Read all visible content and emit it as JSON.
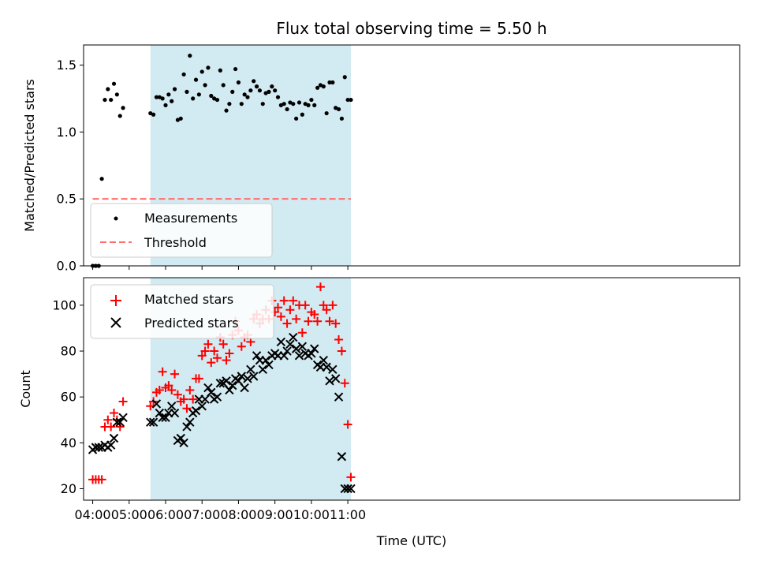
{
  "title": "Flux total observing time = 5.50 h",
  "colors": {
    "shade": "#add8e6",
    "measurement": "#000000",
    "threshold": "#ff6e6e",
    "matched": "#ff0000",
    "predicted": "#000000"
  },
  "chart_data": [
    {
      "type": "scatter",
      "ylabel": "Matched/Predicted stars",
      "xlabel": "",
      "xlim": [
        225,
        1305
      ],
      "ylim": [
        0,
        1.65
      ],
      "yticks": [
        0.0,
        0.5,
        1.0,
        1.5
      ],
      "ytick_labels": [
        "0.0",
        "0.5",
        "1.0",
        "1.5"
      ],
      "xticks": [
        240,
        300,
        360,
        420,
        480,
        540,
        600,
        660
      ],
      "shaded_span": [
        335,
        665
      ],
      "legend": {
        "position": "lower-left",
        "entries": [
          "Measurements",
          "Threshold"
        ]
      },
      "threshold": {
        "name": "Threshold",
        "x": [
          240,
          665
        ],
        "y": 0.5
      },
      "series": [
        {
          "name": "Measurements",
          "marker": "dot",
          "x": [
            240,
            245,
            250,
            255,
            260,
            265,
            270,
            275,
            280,
            285,
            290,
            335,
            340,
            345,
            350,
            355,
            360,
            365,
            370,
            375,
            380,
            385,
            390,
            395,
            400,
            405,
            410,
            415,
            420,
            425,
            430,
            435,
            440,
            445,
            450,
            455,
            460,
            465,
            470,
            475,
            480,
            485,
            490,
            495,
            500,
            505,
            510,
            515,
            520,
            525,
            530,
            535,
            540,
            545,
            550,
            555,
            560,
            565,
            570,
            575,
            580,
            585,
            590,
            595,
            600,
            605,
            610,
            615,
            620,
            625,
            630,
            635,
            640,
            645,
            650,
            655,
            660,
            665
          ],
          "y": [
            0.0,
            0.0,
            0.0,
            0.65,
            1.24,
            1.32,
            1.24,
            1.36,
            1.28,
            1.12,
            1.18,
            1.14,
            1.13,
            1.26,
            1.26,
            1.25,
            1.2,
            1.28,
            1.23,
            1.32,
            1.09,
            1.1,
            1.43,
            1.3,
            1.57,
            1.25,
            1.39,
            1.28,
            1.45,
            1.35,
            1.48,
            1.27,
            1.25,
            1.24,
            1.46,
            1.35,
            1.16,
            1.21,
            1.3,
            1.47,
            1.37,
            1.21,
            1.28,
            1.26,
            1.31,
            1.38,
            1.34,
            1.31,
            1.21,
            1.29,
            1.3,
            1.34,
            1.31,
            1.26,
            1.2,
            1.21,
            1.17,
            1.22,
            1.21,
            1.1,
            1.22,
            1.13,
            1.21,
            1.2,
            1.24,
            1.2,
            1.33,
            1.35,
            1.34,
            1.14,
            1.37,
            1.37,
            1.18,
            1.17,
            1.1,
            1.41,
            1.24,
            1.24
          ]
        }
      ]
    },
    {
      "type": "scatter",
      "ylabel": "Count",
      "xlabel": "Time (UTC)",
      "xlim": [
        225,
        1305
      ],
      "ylim": [
        15,
        112
      ],
      "yticks": [
        20,
        40,
        60,
        80,
        100
      ],
      "ytick_labels": [
        "20",
        "40",
        "60",
        "80",
        "100"
      ],
      "xticks": [
        240,
        300,
        360,
        420,
        480,
        540,
        600,
        660
      ],
      "xtick_labels": [
        "04:00",
        "05:00",
        "06:00",
        "07:00",
        "08:00",
        "09:00",
        "10:00",
        "11:00"
      ],
      "shaded_span": [
        335,
        665
      ],
      "legend": {
        "position": "top-left",
        "entries": [
          "Matched stars",
          "Predicted stars"
        ]
      },
      "series": [
        {
          "name": "Matched stars",
          "marker": "plus",
          "x": [
            240,
            245,
            250,
            255,
            260,
            265,
            270,
            275,
            280,
            285,
            290,
            335,
            340,
            345,
            350,
            355,
            360,
            365,
            370,
            375,
            380,
            385,
            390,
            395,
            400,
            405,
            410,
            415,
            420,
            425,
            430,
            435,
            440,
            445,
            450,
            455,
            460,
            465,
            470,
            475,
            480,
            485,
            490,
            495,
            500,
            505,
            510,
            515,
            520,
            525,
            530,
            535,
            540,
            545,
            550,
            555,
            560,
            565,
            570,
            575,
            580,
            585,
            590,
            595,
            600,
            605,
            610,
            615,
            620,
            625,
            630,
            635,
            640,
            645,
            650,
            655,
            660,
            665
          ],
          "y": [
            24,
            24,
            24,
            24,
            47,
            50,
            47,
            53,
            50,
            47,
            58,
            56,
            58,
            62,
            63,
            71,
            64,
            65,
            63,
            70,
            61,
            58,
            59,
            55,
            63,
            59,
            68,
            68,
            78,
            80,
            83,
            75,
            80,
            77,
            86,
            83,
            76,
            79,
            87,
            93,
            89,
            82,
            86,
            87,
            84,
            94,
            96,
            92,
            94,
            98,
            94,
            102,
            97,
            99,
            95,
            102,
            92,
            98,
            102,
            94,
            100,
            88,
            100,
            93,
            97,
            96,
            93,
            108,
            100,
            98,
            93,
            100,
            92,
            85,
            80,
            66,
            48,
            25
          ]
        },
        {
          "name": "Predicted stars",
          "marker": "x",
          "x": [
            240,
            245,
            250,
            255,
            260,
            265,
            270,
            275,
            280,
            285,
            290,
            335,
            340,
            345,
            350,
            355,
            360,
            365,
            370,
            375,
            380,
            385,
            390,
            395,
            400,
            405,
            410,
            415,
            420,
            425,
            430,
            435,
            440,
            445,
            450,
            455,
            460,
            465,
            470,
            475,
            480,
            485,
            490,
            495,
            500,
            505,
            510,
            515,
            520,
            525,
            530,
            535,
            540,
            545,
            550,
            555,
            560,
            565,
            570,
            575,
            580,
            585,
            590,
            595,
            600,
            605,
            610,
            615,
            620,
            625,
            630,
            635,
            640,
            645,
            650,
            655,
            660,
            665
          ],
          "y": [
            37,
            38,
            38,
            38,
            39,
            38,
            39,
            42,
            49,
            49,
            51,
            49,
            49,
            57,
            53,
            51,
            51,
            53,
            56,
            53,
            41,
            42,
            40,
            47,
            49,
            53,
            54,
            59,
            56,
            59,
            64,
            62,
            59,
            60,
            66,
            66,
            67,
            63,
            65,
            68,
            67,
            69,
            64,
            68,
            72,
            69,
            78,
            76,
            72,
            76,
            74,
            78,
            79,
            78,
            84,
            78,
            80,
            83,
            86,
            81,
            78,
            82,
            79,
            78,
            79,
            81,
            74,
            73,
            76,
            73,
            67,
            72,
            68,
            60,
            34,
            20,
            20,
            20
          ]
        }
      ]
    }
  ]
}
